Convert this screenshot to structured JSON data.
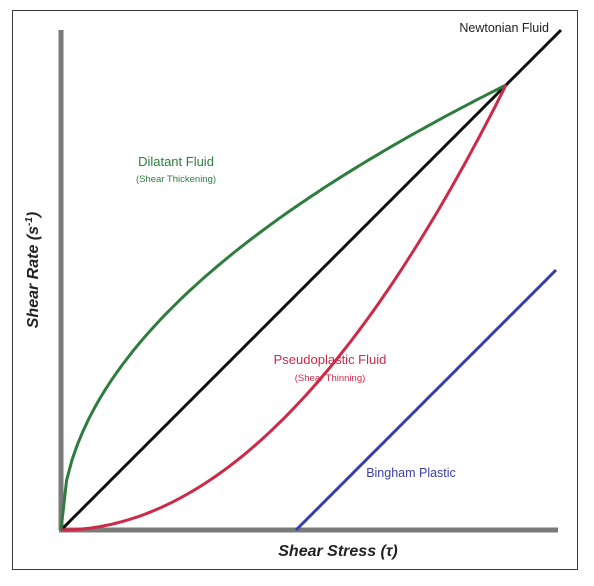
{
  "chart_data": {
    "type": "line",
    "xlabel": "Shear Stress (τ)",
    "ylabel_main": "Shear Rate (s",
    "ylabel_sup": "-1",
    "ylabel_close": ")",
    "colors": {
      "axis": "#7a7a7a",
      "newtonian": "#111111",
      "dilatant": "#2e7d3e",
      "pseudoplastic": "#cc2a47",
      "bingham": "#3a3fa8"
    },
    "series": [
      {
        "name": "Newtonian Fluid",
        "sublabel": "",
        "shape": "linear",
        "x0": 0,
        "y0": 0,
        "x1": 1.0,
        "y1": 1.0
      },
      {
        "name": "Dilatant Fluid",
        "sublabel": "(Shear Thickening)",
        "shape": "sqrt",
        "x0": 0,
        "y0": 0,
        "x1": 0.89,
        "y1": 0.89
      },
      {
        "name": "Pseudoplastic Fluid",
        "sublabel": "(Shear Thinning)",
        "shape": "square",
        "x0": 0,
        "y0": 0,
        "x1": 0.89,
        "y1": 0.89
      },
      {
        "name": "Bingham Plastic",
        "sublabel": "",
        "shape": "linear",
        "x0": 0.47,
        "y0": 0,
        "x1": 0.99,
        "y1": 0.52
      }
    ]
  }
}
